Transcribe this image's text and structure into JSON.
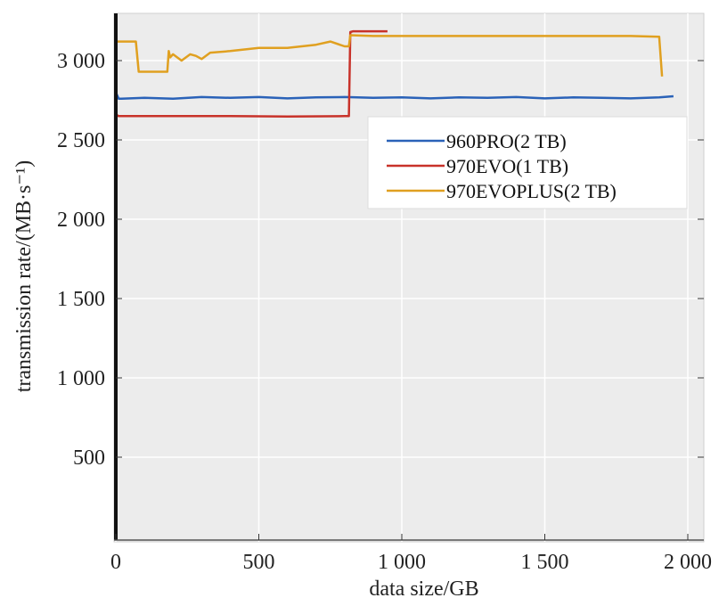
{
  "chart_data": {
    "type": "line",
    "title": "",
    "xlabel": "data size/GB",
    "ylabel": "transmission rate/(MB·s⁻¹)",
    "xlim": [
      0,
      2000
    ],
    "ylim": [
      0,
      3300
    ],
    "xticks": [
      0,
      500,
      1000,
      1500,
      2000
    ],
    "xtick_labels": [
      "0",
      "500",
      "1 000",
      "1 500",
      "2 000"
    ],
    "yticks": [
      500,
      1000,
      1500,
      2000,
      2500,
      3000
    ],
    "ytick_labels": [
      "500",
      "1 000",
      "1 500",
      "2 000",
      "2 500",
      "3 000"
    ],
    "grid": true,
    "legend_position": "upper-right",
    "series": [
      {
        "name": "960PRO(2 TB)",
        "color": "#2a62b8",
        "x": [
          0,
          10,
          20,
          100,
          200,
          300,
          400,
          500,
          600,
          700,
          800,
          900,
          1000,
          1100,
          1200,
          1300,
          1400,
          1500,
          1600,
          1700,
          1800,
          1900,
          1950
        ],
        "y": [
          2800,
          2760,
          2760,
          2765,
          2760,
          2770,
          2765,
          2770,
          2762,
          2768,
          2770,
          2765,
          2768,
          2762,
          2768,
          2765,
          2770,
          2762,
          2768,
          2765,
          2762,
          2768,
          2775
        ]
      },
      {
        "name": "970EVO(1 TB)",
        "color": "#c8322a",
        "x": [
          0,
          10,
          200,
          400,
          600,
          800,
          815,
          820,
          830,
          950
        ],
        "y": [
          2660,
          2650,
          2650,
          2650,
          2648,
          2650,
          2650,
          3180,
          3185,
          3185
        ]
      },
      {
        "name": "970EVOPLUS(2 TB)",
        "color": "#e0a020",
        "x": [
          0,
          70,
          80,
          100,
          180,
          185,
          190,
          200,
          230,
          260,
          280,
          300,
          330,
          400,
          500,
          600,
          700,
          750,
          800,
          815,
          820,
          900,
          1000,
          1200,
          1400,
          1600,
          1800,
          1900,
          1910
        ],
        "y": [
          3120,
          3120,
          2930,
          2930,
          2930,
          3060,
          3020,
          3040,
          3000,
          3040,
          3030,
          3010,
          3050,
          3060,
          3080,
          3080,
          3100,
          3120,
          3090,
          3090,
          3160,
          3155,
          3155,
          3155,
          3155,
          3155,
          3155,
          3150,
          2900
        ]
      }
    ]
  }
}
